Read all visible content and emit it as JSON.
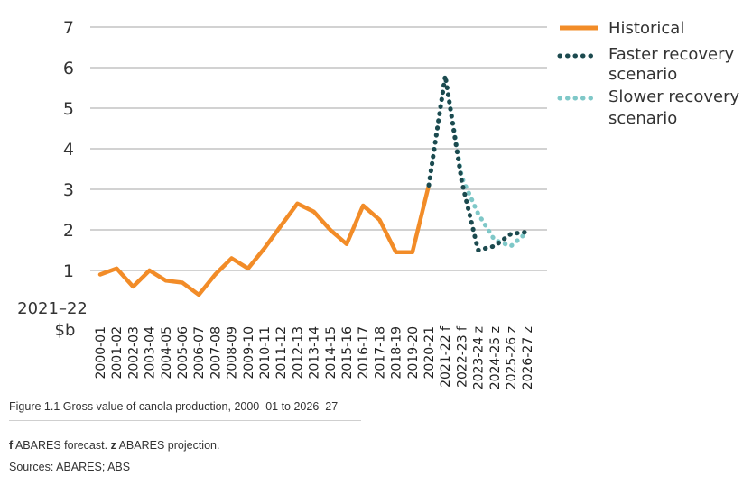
{
  "chart_data": {
    "type": "line",
    "ylabel_lines": [
      "2021–22",
      "$b"
    ],
    "ylim": [
      0,
      7
    ],
    "yticks": [
      1,
      2,
      3,
      4,
      5,
      6,
      7
    ],
    "grid": true,
    "legend_placement": "top-right",
    "x": [
      "2000-01",
      "2001-02",
      "2002-03",
      "2003-04",
      "2004-05",
      "2005-06",
      "2006-07",
      "2007-08",
      "2008-09",
      "2009-10",
      "2010-11",
      "2011-12",
      "2012-13",
      "2013-14",
      "2014-15",
      "2015-16",
      "2016-17",
      "2017-18",
      "2018-19",
      "2019-20",
      "2020-21",
      "2021-22 f",
      "2022-23 f",
      "2023-24 z",
      "2024-25 z",
      "2025-26 z",
      "2026-27 z"
    ],
    "series": [
      {
        "name": "Historical",
        "color": "#f28c28",
        "style": "solid",
        "values": [
          0.9,
          1.05,
          0.6,
          1.0,
          0.75,
          0.7,
          0.4,
          0.9,
          1.3,
          1.05,
          1.55,
          2.1,
          2.65,
          2.45,
          2.0,
          1.65,
          2.6,
          2.25,
          1.45,
          1.45,
          3.1,
          null,
          null,
          null,
          null,
          null,
          null
        ]
      },
      {
        "name": "Faster recovery scenario",
        "legend_lines": [
          "Faster recovery",
          "scenario"
        ],
        "color": "#1c4a4f",
        "style": "dotted",
        "values": [
          null,
          null,
          null,
          null,
          null,
          null,
          null,
          null,
          null,
          null,
          null,
          null,
          null,
          null,
          null,
          null,
          null,
          null,
          null,
          null,
          3.1,
          5.8,
          3.2,
          1.5,
          1.6,
          1.9,
          1.95
        ]
      },
      {
        "name": "Slower recovery scenario",
        "legend_lines": [
          "Slower recovery",
          "scenario"
        ],
        "color": "#7fc8c8",
        "style": "dotted",
        "values": [
          null,
          null,
          null,
          null,
          null,
          null,
          null,
          null,
          null,
          null,
          null,
          null,
          null,
          null,
          null,
          null,
          null,
          null,
          null,
          null,
          3.1,
          5.8,
          3.3,
          2.4,
          1.75,
          1.6,
          1.95
        ]
      }
    ]
  },
  "caption": "Figure 1.1 Gross value of canola production, 2000–01 to 2026–27",
  "note": {
    "f_key": "f",
    "f_text": " ABARES forecast. ",
    "z_key": "z",
    "z_text": " ABARES projection."
  },
  "sources": "Sources: ABARES; ABS"
}
